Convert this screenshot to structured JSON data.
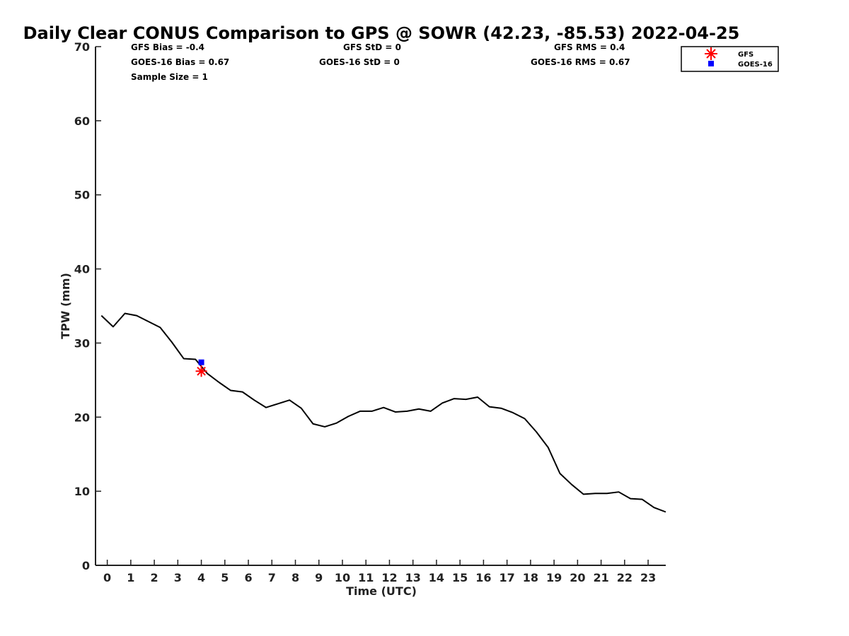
{
  "chart_data": {
    "type": "line",
    "title": "Daily Clear CONUS Comparison to GPS @ SOWR (42.23, -85.53) 2022-04-25",
    "xlabel": "Time (UTC)",
    "ylabel": "TPW (mm)",
    "xlim": [
      -0.5,
      23.75
    ],
    "ylim": [
      0,
      70
    ],
    "xticks": [
      0,
      1,
      2,
      3,
      4,
      5,
      6,
      7,
      8,
      9,
      10,
      11,
      12,
      13,
      14,
      15,
      16,
      17,
      18,
      19,
      20,
      21,
      22,
      23
    ],
    "xtick_labels": [
      "0",
      "1",
      "2",
      "3",
      "4",
      "5",
      "6",
      "7",
      "8",
      "9",
      "10",
      "11",
      "12",
      "13",
      "14",
      "15",
      "16",
      "17",
      "18",
      "19",
      "20",
      "21",
      "22",
      "23"
    ],
    "yticks": [
      0,
      10,
      20,
      30,
      40,
      50,
      60,
      70
    ],
    "ytick_labels": [
      "0",
      "10",
      "20",
      "30",
      "40",
      "50",
      "60",
      "70"
    ],
    "grid": false,
    "legend_position": "top-right",
    "series": [
      {
        "name": "",
        "kind": "line",
        "color": "#000000",
        "x": [
          -0.25,
          0.25,
          0.75,
          1.25,
          1.75,
          2.25,
          2.75,
          3.25,
          3.75,
          4.25,
          4.75,
          5.25,
          5.75,
          6.25,
          6.75,
          7.25,
          7.75,
          8.25,
          8.75,
          9.25,
          9.75,
          10.25,
          10.75,
          11.25,
          11.75,
          12.25,
          12.75,
          13.25,
          13.75,
          14.25,
          14.75,
          15.25,
          15.75,
          16.25,
          16.75,
          17.25,
          17.75,
          18.25,
          18.75,
          19.25,
          19.75,
          20.25,
          20.75,
          21.25,
          21.75,
          22.25,
          22.75,
          23.25,
          23.75
        ],
        "y": [
          33.7,
          32.2,
          34.0,
          33.7,
          32.9,
          32.1,
          30.1,
          27.9,
          27.8,
          25.9,
          24.7,
          23.6,
          23.4,
          22.3,
          21.3,
          21.8,
          22.3,
          21.2,
          19.1,
          18.7,
          19.2,
          20.1,
          20.8,
          20.8,
          21.3,
          20.7,
          20.8,
          21.1,
          20.8,
          21.9,
          22.5,
          22.4,
          22.7,
          21.4,
          21.2,
          20.6,
          19.8,
          18.0,
          15.9,
          12.4,
          10.9,
          9.6,
          9.7,
          9.7,
          9.9,
          9.0,
          8.9,
          7.8,
          7.2
        ]
      },
      {
        "name": "GFS",
        "kind": "marker",
        "marker": "asterisk",
        "color": "#ff0000",
        "x": [
          4.0
        ],
        "y": [
          26.2
        ]
      },
      {
        "name": "GOES-16",
        "kind": "marker",
        "marker": "square",
        "color": "#0000ff",
        "x": [
          4.0
        ],
        "y": [
          27.4
        ]
      }
    ],
    "stats": {
      "gfs_bias": "GFS Bias = -0.4",
      "goes_bias": "GOES-16 Bias = 0.67",
      "sample_size": "Sample Size = 1",
      "gfs_std": "GFS StD = 0",
      "goes_std": "GOES-16 StD = 0",
      "gfs_rms": "GFS RMS = 0.4",
      "goes_rms": "GOES-16 RMS = 0.67"
    }
  }
}
